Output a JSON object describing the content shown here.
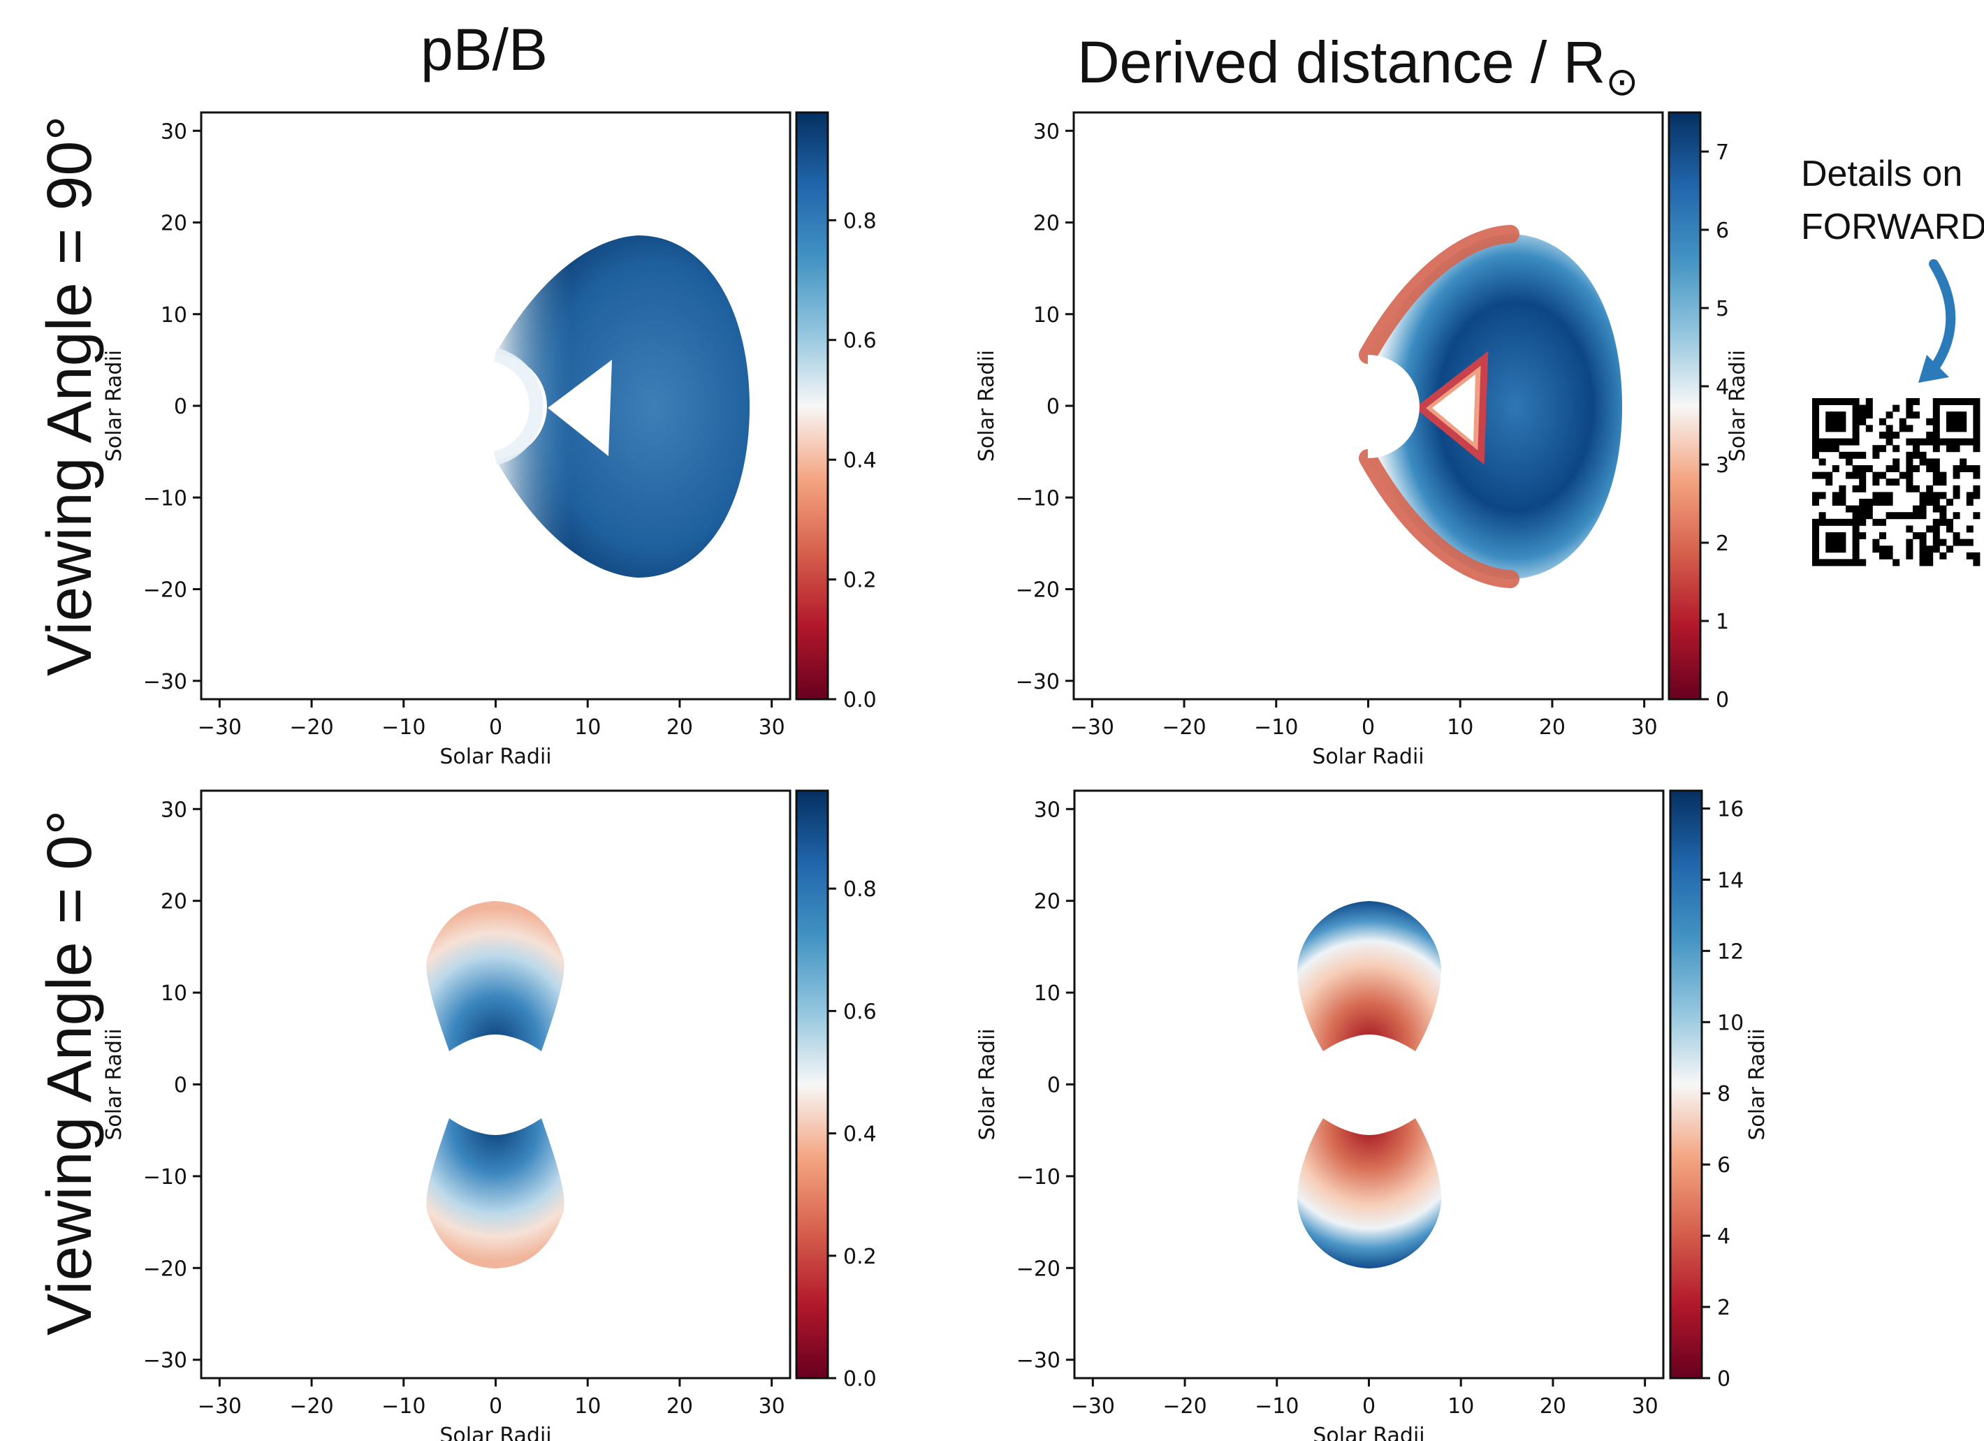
{
  "column_titles": {
    "left": "pB/B",
    "right_main": "Derived distance / R",
    "right_sub": "⊙"
  },
  "row_titles": {
    "top": "Viewing Angle = 90°",
    "bottom": "Viewing Angle = 0°"
  },
  "qr_note": {
    "line1": "Details on",
    "line2": "FORWARD",
    "icon": "qr-code-icon",
    "arrow_icon": "curved-arrow-icon",
    "arrow_color": "#2b7bba"
  },
  "colormap": "RdBu",
  "chart_data": [
    {
      "type": "heatmap",
      "panel": "pB/B, viewing angle 90°",
      "xlabel": "Solar Radii",
      "ylabel": "Solar Radii",
      "xlim": [
        -32,
        32
      ],
      "ylim": [
        -32,
        32
      ],
      "xticks": [
        -30,
        -20,
        -10,
        0,
        10,
        20,
        30
      ],
      "yticks": [
        -30,
        -20,
        -10,
        0,
        10,
        20,
        30
      ],
      "colorbar": {
        "min": 0.0,
        "max": 0.98,
        "ticks": [
          0.0,
          0.2,
          0.4,
          0.6,
          0.8
        ],
        "tick_labels": [
          "0.0",
          "0.2",
          "0.4",
          "0.6",
          "0.8"
        ],
        "label": ""
      },
      "structure": "cavity (croissant-shaped flux rope) centred near x=15, y=0, outer radius ~18, inner triangular void from x=6 to 12; values ~0.85 throughout, lower (~0.5) near occulter"
    },
    {
      "type": "heatmap",
      "panel": "Derived distance, viewing angle 90°",
      "xlabel": "Solar Radii",
      "ylabel": "Solar Radii",
      "xlim": [
        -32,
        32
      ],
      "ylim": [
        -32,
        32
      ],
      "xticks": [
        -30,
        -20,
        -10,
        0,
        10,
        20,
        30
      ],
      "yticks": [
        -30,
        -20,
        -10,
        0,
        10,
        20,
        30
      ],
      "colorbar": {
        "min": 0,
        "max": 7.5,
        "ticks": [
          0,
          1,
          2,
          3,
          4,
          5,
          6,
          7
        ],
        "tick_labels": [
          "0",
          "1",
          "2",
          "3",
          "4",
          "5",
          "6",
          "7"
        ],
        "label": "Solar Radii"
      },
      "structure": "same cavity shape; leading edge and inner triangle ~2, interior ~7, outer rim ~4.5"
    },
    {
      "type": "heatmap",
      "panel": "pB/B, viewing angle 0°",
      "xlabel": "Solar Radii",
      "ylabel": "Solar Radii",
      "xlim": [
        -32,
        32
      ],
      "ylim": [
        -32,
        32
      ],
      "xticks": [
        -30,
        -20,
        -10,
        0,
        10,
        20,
        30
      ],
      "yticks": [
        -30,
        -20,
        -10,
        0,
        10,
        20,
        30
      ],
      "colorbar": {
        "min": 0.0,
        "max": 0.96,
        "ticks": [
          0.0,
          0.2,
          0.4,
          0.6,
          0.8
        ],
        "tick_labels": [
          "0.0",
          "0.2",
          "0.4",
          "0.6",
          "0.8"
        ],
        "label": ""
      },
      "structure": "two lobes above and below occulter (|y| from 4 to 20, |x| < 8); core ~0.85 near occulter, edges ~0.4"
    },
    {
      "type": "heatmap",
      "panel": "Derived distance, viewing angle 0°",
      "xlabel": "Solar Radii",
      "ylabel": "Solar Radii",
      "xlim": [
        -32,
        32
      ],
      "ylim": [
        -32,
        32
      ],
      "xticks": [
        -30,
        -20,
        -10,
        0,
        10,
        20,
        30
      ],
      "yticks": [
        -30,
        -20,
        -10,
        0,
        10,
        20,
        30
      ],
      "colorbar": {
        "min": 0,
        "max": 16.5,
        "ticks": [
          0,
          2,
          4,
          6,
          8,
          10,
          12,
          14,
          16
        ],
        "tick_labels": [
          "0",
          "2",
          "4",
          "6",
          "8",
          "10",
          "12",
          "14",
          "16"
        ],
        "label": "Solar Radii"
      },
      "structure": "two lobes; ~1 near occulter rising to ~16 at outer edge"
    }
  ]
}
